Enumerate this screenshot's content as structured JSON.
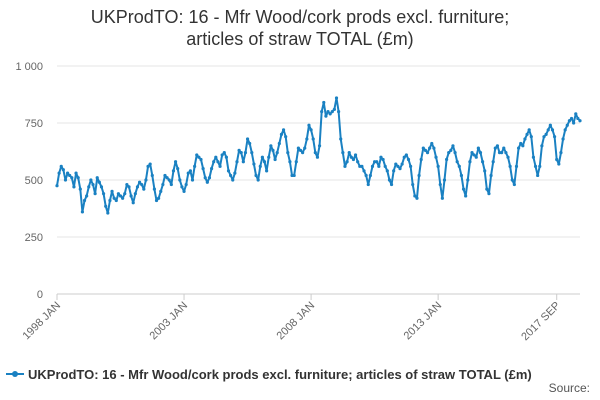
{
  "chart_data": {
    "type": "line",
    "title": "UKProdTO: 16 - Mfr Wood/cork prods excl. furniture; articles of straw TOTAL (£m)",
    "title_lines": [
      "UKProdTO: 16 - Mfr Wood/cork prods excl. furniture;",
      "articles of straw TOTAL (£m)"
    ],
    "xlabel": "",
    "ylabel": "",
    "ylim": [
      0,
      1000
    ],
    "y_ticks": [
      0,
      250,
      500,
      750,
      1000
    ],
    "y_tick_labels": [
      "0",
      "250",
      "500",
      "750",
      "1 000"
    ],
    "x_ticks": [
      {
        "label": "1998 JAN",
        "index": 0
      },
      {
        "label": "2003 JAN",
        "index": 60
      },
      {
        "label": "2008 JAN",
        "index": 120
      },
      {
        "label": "2013 JAN",
        "index": 180
      },
      {
        "label": "2017 SEP",
        "index": 236
      }
    ],
    "grid": true,
    "legend_position": "bottom-left",
    "series": [
      {
        "name": "UKProdTO: 16 - Mfr Wood/cork prods excl. furniture; articles of straw TOTAL (£m)",
        "color": "#1a81c2",
        "start": "1998 JAN",
        "values": [
          475,
          530,
          560,
          545,
          500,
          530,
          520,
          510,
          470,
          530,
          510,
          460,
          360,
          410,
          430,
          470,
          500,
          480,
          440,
          510,
          490,
          470,
          440,
          385,
          355,
          410,
          450,
          420,
          410,
          440,
          430,
          420,
          440,
          480,
          470,
          430,
          400,
          440,
          470,
          490,
          480,
          460,
          500,
          560,
          570,
          520,
          460,
          410,
          420,
          450,
          480,
          520,
          510,
          500,
          480,
          540,
          580,
          550,
          500,
          470,
          450,
          480,
          530,
          540,
          500,
          560,
          610,
          600,
          590,
          550,
          510,
          490,
          510,
          550,
          580,
          600,
          580,
          560,
          610,
          620,
          600,
          540,
          520,
          500,
          530,
          580,
          630,
          620,
          580,
          620,
          680,
          660,
          620,
          570,
          520,
          500,
          560,
          600,
          580,
          540,
          600,
          650,
          630,
          590,
          620,
          660,
          700,
          720,
          690,
          620,
          580,
          520,
          520,
          580,
          640,
          630,
          620,
          640,
          680,
          740,
          720,
          680,
          620,
          600,
          650,
          800,
          840,
          780,
          800,
          790,
          800,
          810,
          860,
          800,
          680,
          620,
          560,
          580,
          620,
          600,
          590,
          610,
          580,
          560,
          560,
          540,
          520,
          480,
          520,
          560,
          580,
          580,
          560,
          600,
          590,
          560,
          540,
          500,
          480,
          540,
          570,
          560,
          550,
          570,
          600,
          610,
          590,
          560,
          480,
          430,
          420,
          520,
          590,
          640,
          630,
          620,
          640,
          660,
          640,
          600,
          560,
          480,
          420,
          500,
          590,
          620,
          630,
          650,
          620,
          580,
          560,
          520,
          460,
          430,
          500,
          580,
          620,
          610,
          600,
          640,
          620,
          580,
          540,
          460,
          440,
          520,
          580,
          640,
          650,
          620,
          620,
          640,
          620,
          600,
          560,
          500,
          480,
          560,
          640,
          660,
          650,
          680,
          700,
          720,
          690,
          600,
          560,
          520,
          560,
          650,
          690,
          700,
          720,
          740,
          720,
          690,
          590,
          570,
          620,
          680,
          720,
          740,
          760,
          770,
          750,
          790,
          770,
          760
        ]
      }
    ]
  },
  "source_label": "Source:"
}
